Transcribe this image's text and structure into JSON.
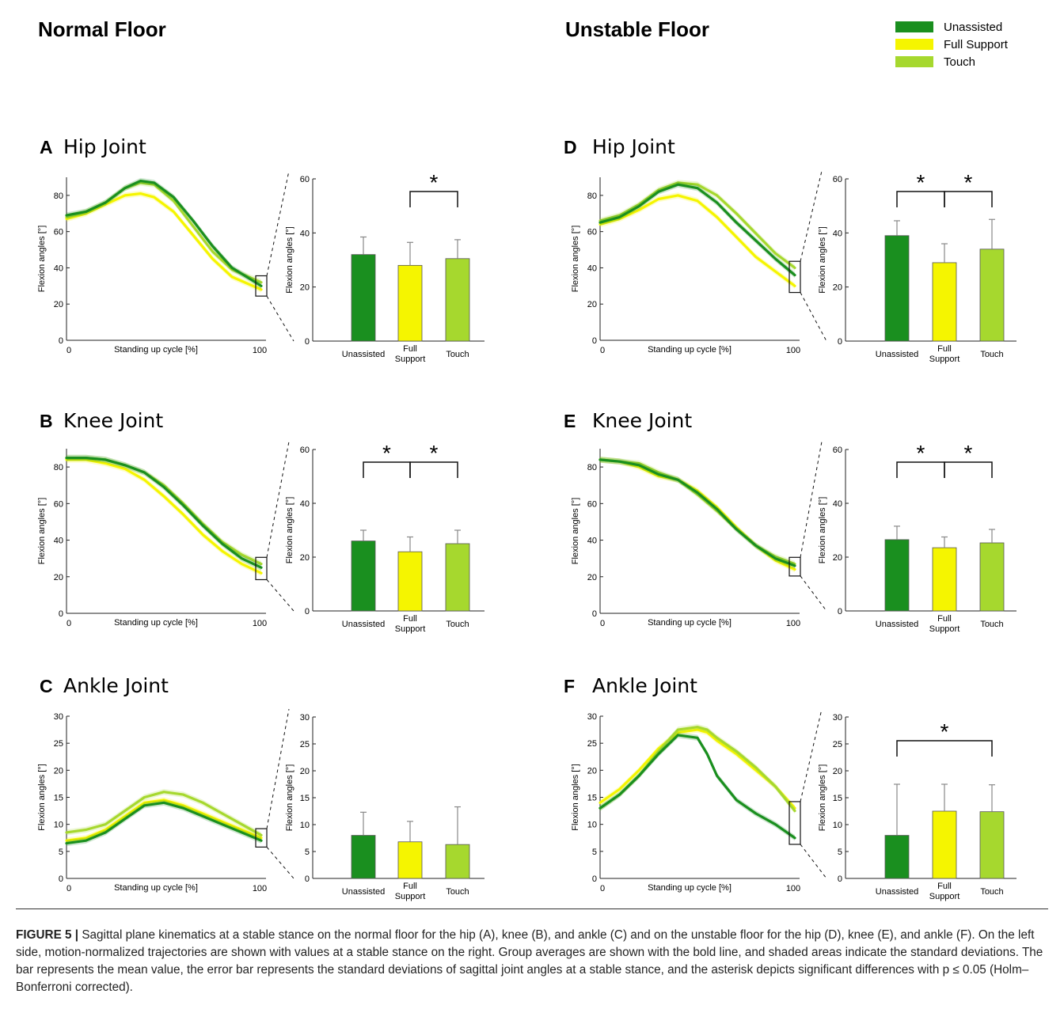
{
  "headings": {
    "left": "Normal Floor",
    "right": "Unstable Floor"
  },
  "legend": [
    {
      "label": "Unassisted",
      "color": "#1a8f1f"
    },
    {
      "label": "Full Support",
      "color": "#f5f500"
    },
    {
      "label": "Touch",
      "color": "#a6d82e"
    }
  ],
  "common": {
    "xlabel": "Standing up cycle [%]",
    "ylabel": "Flexion angles [°]",
    "x_ticks": [
      "0",
      "100"
    ],
    "bar_labels": [
      "Unassisted",
      "Full\nSupport",
      "Touch"
    ]
  },
  "chart_data": [
    {
      "panel": "A",
      "title": "Hip Joint",
      "type": "line",
      "xlim": [
        0,
        100
      ],
      "ylim": [
        0,
        90
      ],
      "yticks": [
        0,
        20,
        40,
        60,
        80
      ],
      "series": [
        {
          "name": "Unassisted",
          "x": [
            0,
            10,
            20,
            30,
            38,
            45,
            55,
            65,
            75,
            85,
            100
          ],
          "values": [
            69,
            71,
            76,
            84,
            88,
            87,
            79,
            66,
            52,
            40,
            30
          ]
        },
        {
          "name": "Full Support",
          "x": [
            0,
            10,
            20,
            30,
            38,
            45,
            55,
            65,
            75,
            85,
            100
          ],
          "values": [
            67,
            70,
            75,
            80,
            81,
            79,
            71,
            58,
            45,
            35,
            28
          ]
        },
        {
          "name": "Touch",
          "x": [
            0,
            10,
            20,
            30,
            38,
            45,
            55,
            65,
            75,
            85,
            100
          ],
          "values": [
            68,
            71,
            76,
            84,
            87,
            86,
            77,
            63,
            49,
            39,
            32
          ]
        }
      ]
    },
    {
      "panel": "A",
      "type": "bar",
      "categories": [
        "Unassisted",
        "Full Support",
        "Touch"
      ],
      "values": [
        32,
        28,
        30.5
      ],
      "errors": [
        6.5,
        8.5,
        7
      ],
      "ylim": [
        0,
        60
      ],
      "yticks": [
        0,
        20,
        40,
        60
      ],
      "significance": [
        [
          1,
          2
        ]
      ]
    },
    {
      "panel": "B",
      "title": "Knee Joint",
      "type": "line",
      "xlim": [
        0,
        100
      ],
      "ylim": [
        0,
        90
      ],
      "yticks": [
        0,
        20,
        40,
        60,
        80
      ],
      "series": [
        {
          "name": "Unassisted",
          "x": [
            0,
            10,
            20,
            30,
            40,
            50,
            60,
            70,
            80,
            90,
            100
          ],
          "values": [
            85,
            85,
            84,
            81,
            77,
            69,
            59,
            48,
            38,
            30,
            25
          ]
        },
        {
          "name": "Full Support",
          "x": [
            0,
            10,
            20,
            30,
            40,
            50,
            60,
            70,
            80,
            90,
            100
          ],
          "values": [
            84,
            84,
            82,
            79,
            73,
            64,
            54,
            43,
            34,
            27,
            22
          ]
        },
        {
          "name": "Touch",
          "x": [
            0,
            10,
            20,
            30,
            40,
            50,
            60,
            70,
            80,
            90,
            100
          ],
          "values": [
            85,
            85,
            84,
            81,
            77,
            70,
            60,
            49,
            39,
            32,
            27
          ]
        }
      ]
    },
    {
      "panel": "B",
      "type": "bar",
      "categories": [
        "Unassisted",
        "Full Support",
        "Touch"
      ],
      "values": [
        26,
        22,
        25
      ],
      "errors": [
        4,
        5.5,
        5
      ],
      "ylim": [
        0,
        60
      ],
      "yticks": [
        0,
        20,
        40,
        60
      ],
      "significance": [
        [
          0,
          1
        ],
        [
          1,
          2
        ]
      ]
    },
    {
      "panel": "C",
      "title": "Ankle Joint",
      "type": "line",
      "xlim": [
        0,
        100
      ],
      "ylim": [
        0,
        30
      ],
      "yticks": [
        0,
        5,
        10,
        15,
        20,
        25,
        30
      ],
      "series": [
        {
          "name": "Unassisted",
          "x": [
            0,
            10,
            20,
            30,
            40,
            50,
            60,
            70,
            80,
            90,
            100
          ],
          "values": [
            6.5,
            7,
            8.5,
            11,
            13.5,
            14,
            13,
            11.5,
            10,
            8.5,
            7
          ]
        },
        {
          "name": "Full Support",
          "x": [
            0,
            10,
            20,
            30,
            40,
            50,
            60,
            70,
            80,
            90,
            100
          ],
          "values": [
            7,
            7.5,
            9,
            11.5,
            14,
            14.5,
            13.5,
            12,
            10.5,
            9,
            7.5
          ]
        },
        {
          "name": "Touch",
          "x": [
            0,
            10,
            20,
            30,
            40,
            50,
            60,
            70,
            80,
            90,
            100
          ],
          "values": [
            8.5,
            9,
            10,
            12.5,
            15,
            16,
            15.5,
            14,
            12,
            10,
            8
          ]
        }
      ]
    },
    {
      "panel": "C",
      "type": "bar",
      "categories": [
        "Unassisted",
        "Full Support",
        "Touch"
      ],
      "values": [
        8,
        6.8,
        6.3
      ],
      "errors": [
        4.3,
        3.8,
        7
      ],
      "ylim": [
        0,
        30
      ],
      "yticks": [
        0,
        5,
        10,
        15,
        20,
        25,
        30
      ],
      "significance": []
    },
    {
      "panel": "D",
      "title": "Hip Joint",
      "type": "line",
      "xlim": [
        0,
        100
      ],
      "ylim": [
        0,
        90
      ],
      "yticks": [
        0,
        20,
        40,
        60,
        80
      ],
      "series": [
        {
          "name": "Unassisted",
          "x": [
            0,
            10,
            20,
            30,
            40,
            50,
            60,
            70,
            80,
            90,
            100
          ],
          "values": [
            65,
            68,
            74,
            82,
            86,
            84,
            76,
            65,
            55,
            45,
            36
          ]
        },
        {
          "name": "Full Support",
          "x": [
            0,
            10,
            20,
            30,
            40,
            50,
            60,
            70,
            80,
            90,
            100
          ],
          "values": [
            64,
            67,
            72,
            78,
            80,
            77,
            68,
            57,
            46,
            38,
            30
          ]
        },
        {
          "name": "Touch",
          "x": [
            0,
            10,
            20,
            30,
            40,
            50,
            60,
            70,
            80,
            90,
            100
          ],
          "values": [
            66,
            69,
            75,
            83,
            87,
            86,
            80,
            70,
            59,
            48,
            40
          ]
        }
      ]
    },
    {
      "panel": "D",
      "type": "bar",
      "categories": [
        "Unassisted",
        "Full Support",
        "Touch"
      ],
      "values": [
        39,
        29,
        34
      ],
      "errors": [
        5.5,
        7,
        11
      ],
      "ylim": [
        0,
        60
      ],
      "yticks": [
        0,
        20,
        40,
        60
      ],
      "significance": [
        [
          0,
          1
        ],
        [
          1,
          2
        ]
      ]
    },
    {
      "panel": "E",
      "title": "Knee Joint",
      "type": "line",
      "xlim": [
        0,
        100
      ],
      "ylim": [
        0,
        90
      ],
      "yticks": [
        0,
        20,
        40,
        60,
        80
      ],
      "series": [
        {
          "name": "Unassisted",
          "x": [
            0,
            10,
            20,
            30,
            40,
            50,
            60,
            70,
            80,
            90,
            100
          ],
          "values": [
            84,
            83,
            81,
            76,
            73,
            66,
            57,
            46,
            37,
            30,
            26
          ]
        },
        {
          "name": "Full Support",
          "x": [
            0,
            10,
            20,
            30,
            40,
            50,
            60,
            70,
            80,
            90,
            100
          ],
          "values": [
            84,
            83,
            80,
            75,
            73,
            67,
            58,
            47,
            37,
            29,
            24
          ]
        },
        {
          "name": "Touch",
          "x": [
            0,
            10,
            20,
            30,
            40,
            50,
            60,
            70,
            80,
            90,
            100
          ],
          "values": [
            84,
            83,
            82,
            77,
            73,
            65,
            56,
            46,
            37,
            31,
            27
          ]
        }
      ]
    },
    {
      "panel": "E",
      "type": "bar",
      "categories": [
        "Unassisted",
        "Full Support",
        "Touch"
      ],
      "values": [
        26.5,
        23.5,
        25.3
      ],
      "errors": [
        5,
        4,
        5
      ],
      "ylim": [
        0,
        60
      ],
      "yticks": [
        0,
        20,
        40,
        60
      ],
      "significance": [
        [
          0,
          1
        ],
        [
          1,
          2
        ]
      ]
    },
    {
      "panel": "F",
      "title": "Ankle Joint",
      "type": "line",
      "xlim": [
        0,
        100
      ],
      "ylim": [
        0,
        30
      ],
      "yticks": [
        0,
        5,
        10,
        15,
        20,
        25,
        30
      ],
      "series": [
        {
          "name": "Unassisted",
          "x": [
            0,
            10,
            20,
            30,
            40,
            50,
            55,
            60,
            70,
            80,
            90,
            100
          ],
          "values": [
            13,
            15.5,
            19,
            23,
            26.5,
            26,
            23,
            19,
            14.5,
            12,
            10,
            7.5
          ]
        },
        {
          "name": "Full Support",
          "x": [
            0,
            10,
            20,
            30,
            40,
            50,
            55,
            60,
            70,
            80,
            90,
            100
          ],
          "values": [
            14,
            16.5,
            20,
            24,
            27,
            27.5,
            27,
            25.5,
            23,
            20,
            17,
            13
          ]
        },
        {
          "name": "Touch",
          "x": [
            0,
            10,
            20,
            30,
            40,
            50,
            55,
            60,
            70,
            80,
            90,
            100
          ],
          "values": [
            13,
            15.5,
            19,
            23.5,
            27.5,
            28,
            27.5,
            26,
            23.5,
            20.5,
            17,
            12.5
          ]
        }
      ]
    },
    {
      "panel": "F",
      "type": "bar",
      "categories": [
        "Unassisted",
        "Full Support",
        "Touch"
      ],
      "values": [
        8,
        12.5,
        12.4
      ],
      "errors": [
        9.5,
        5,
        5
      ],
      "ylim": [
        0,
        30
      ],
      "yticks": [
        0,
        5,
        10,
        15,
        20,
        25,
        30
      ],
      "significance": [
        [
          0,
          2
        ]
      ]
    }
  ],
  "caption": {
    "label": "FIGURE 5 |",
    "text": "Sagittal plane kinematics at a stable stance on the normal floor for the hip (A), knee (B), and ankle (C) and on the unstable floor for the hip (D), knee (E), and ankle (F). On the left side, motion-normalized trajectories are shown with values at a stable stance on the right. Group averages are shown with the bold line, and shaded areas indicate the standard deviations. The bar represents the mean value, the error bar represents the standard deviations of sagittal joint angles at a stable stance, and the asterisk depicts significant differences with p ≤ 0.05 (Holm–Bonferroni corrected)."
  }
}
